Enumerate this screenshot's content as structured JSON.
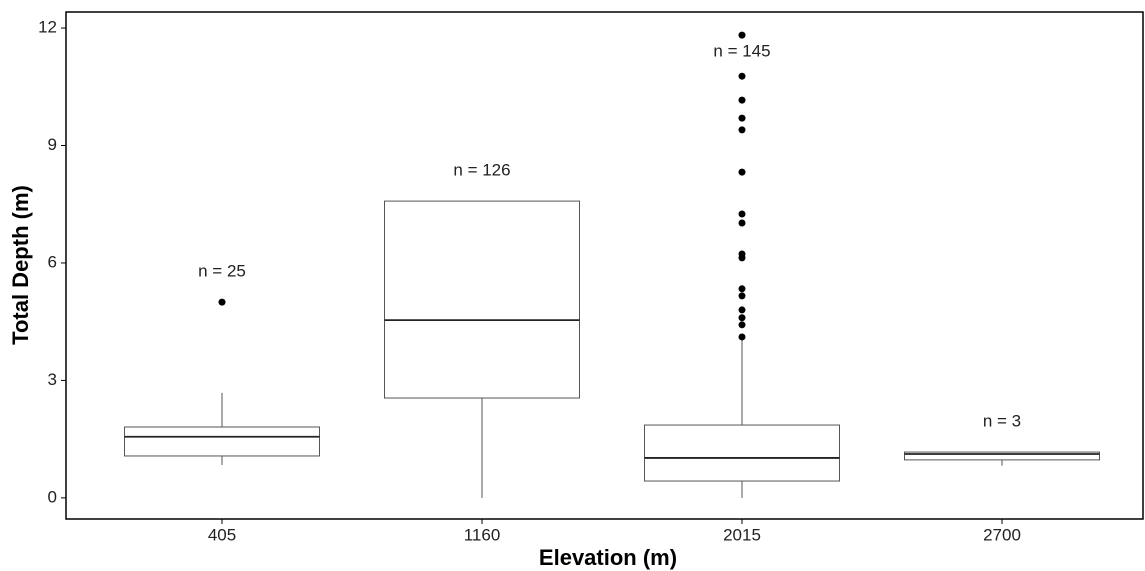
{
  "chart_data": {
    "type": "box",
    "x_label": "Elevation (m)",
    "y_label": "Total Depth (m)",
    "categories": [
      "405",
      "1160",
      "2015",
      "2700"
    ],
    "boxes": [
      {
        "low": 0.84,
        "q1": 1.07,
        "median": 1.56,
        "q3": 1.81,
        "high": 2.68,
        "outliers": [
          5.0
        ]
      },
      {
        "low": 0,
        "q1": 2.55,
        "median": 4.54,
        "q3": 7.58,
        "high": 7.58,
        "outliers": []
      },
      {
        "low": 0,
        "q1": 0.43,
        "median": 1.02,
        "q3": 1.86,
        "high": 4.06,
        "outliers": [
          4.11,
          4.42,
          4.6,
          4.8,
          5.16,
          5.34,
          6.13,
          6.23,
          7.02,
          7.25,
          8.32,
          9.4,
          9.7,
          10.16,
          10.77,
          11.82
        ]
      },
      {
        "low": 0.82,
        "q1": 0.97,
        "median": 1.12,
        "q3": 1.17,
        "high": 1.17,
        "outliers": []
      }
    ],
    "annotations": [
      "n = 25",
      "n = 126",
      "n = 145",
      "n = 3"
    ],
    "color": "#000000",
    "ylim": [
      -0.54,
      12.41
    ],
    "yticks": [
      0,
      3,
      6,
      9,
      12
    ],
    "grid": false
  }
}
